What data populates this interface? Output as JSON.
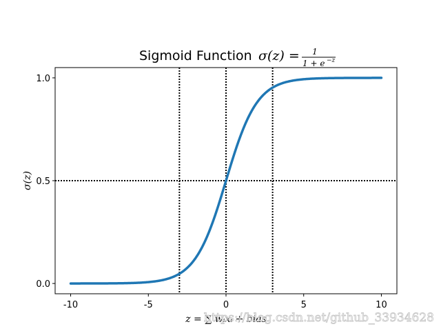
{
  "chart_data": {
    "type": "line",
    "title_text": "Sigmoid Function",
    "title_formula": {
      "lhs": "σ(z) =",
      "numerator": "1",
      "denominator_base": "1 + e",
      "denominator_exponent": "−z"
    },
    "xlabel": "z = ∑ wᵢxᵢ + bias",
    "ylabel": "σ(z)",
    "xlim": [
      -11,
      11
    ],
    "ylim": [
      -0.05,
      1.05
    ],
    "xticks": [
      -10,
      -5,
      0,
      5,
      10
    ],
    "xtick_labels": [
      "-10",
      "-5",
      "0",
      "5",
      "10"
    ],
    "yticks": [
      0.0,
      0.5,
      1.0
    ],
    "ytick_labels": [
      "0.0",
      "0.5",
      "1.0"
    ],
    "grid": false,
    "series": [
      {
        "function": "sigmoid",
        "x_range": [
          -10,
          10
        ],
        "color": "#1f77b4"
      }
    ],
    "reference_lines": {
      "vertical_x": [
        -3,
        0,
        3
      ],
      "horizontal_y": [
        0.5
      ],
      "color": "#000000",
      "style": "dotted"
    }
  },
  "watermark_text": "https://blog.csdn.net/github_33934628"
}
